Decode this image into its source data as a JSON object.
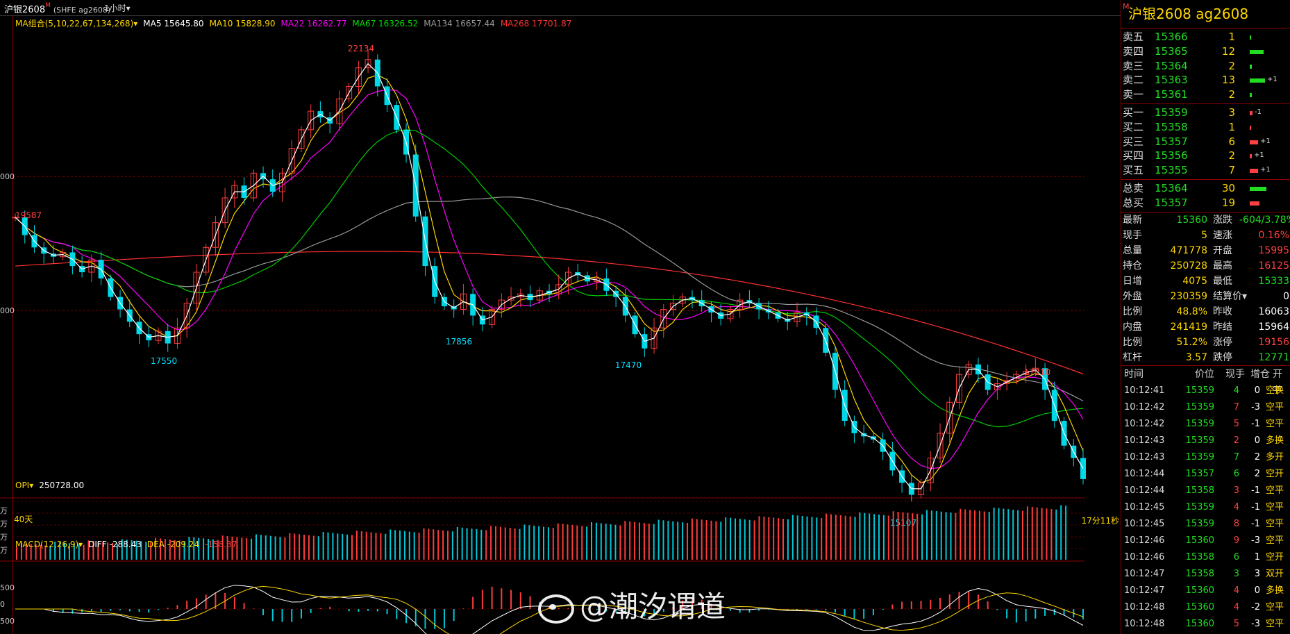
{
  "header": {
    "symbol": "沪银2608",
    "marker": "M",
    "code": "(SHFE ag2608)",
    "period": "1小时▾"
  },
  "main_legend": [
    {
      "label": "MA组合(5,10,22,67,134,268)▾",
      "color": "#ffd700"
    },
    {
      "label": "MA5 15645.80",
      "color": "#ffffff"
    },
    {
      "label": "MA10 15828.90",
      "color": "#ffd700"
    },
    {
      "label": "MA22 16262.77",
      "color": "#ff00ff"
    },
    {
      "label": "MA67 16326.52",
      "color": "#00dd00"
    },
    {
      "label": "MA134 16657.44",
      "color": "#999999"
    },
    {
      "label": "MA268 17701.87",
      "color": "#ff3030"
    }
  ],
  "price_labels": {
    "p22134": "22134",
    "p19587": "19587",
    "p17550": "17550",
    "p17856": "17856",
    "p17470": "17470",
    "p17210": "17210",
    "p15107": "15107",
    "left_days": "40天",
    "countdown": "17分11秒",
    "yaxis_1": "000",
    "yaxis_2": "000"
  },
  "opi_legend": {
    "name": "OPI▾",
    "value": "250728.00"
  },
  "opi_yaxis": [
    "万",
    "万",
    "万",
    "万"
  ],
  "macd_legend": {
    "name": "MACD(12,26,9)▾",
    "diff": "DIFF -288.43",
    "dea": "DEA -209.24",
    "macd": "-158.37"
  },
  "macd_yaxis": [
    "500",
    "0",
    "500"
  ],
  "panel": {
    "title": "沪银2608  ag2608",
    "marker": "M",
    "asks": [
      {
        "label": "卖五",
        "price": "15366",
        "vol": "1",
        "bar": 2,
        "chg": ""
      },
      {
        "label": "卖四",
        "price": "15365",
        "vol": "12",
        "bar": 20,
        "chg": ""
      },
      {
        "label": "卖三",
        "price": "15364",
        "vol": "2",
        "bar": 3,
        "chg": ""
      },
      {
        "label": "卖二",
        "price": "15363",
        "vol": "13",
        "bar": 22,
        "chg": "+1"
      },
      {
        "label": "卖一",
        "price": "15361",
        "vol": "2",
        "bar": 3,
        "chg": ""
      }
    ],
    "bids": [
      {
        "label": "买一",
        "price": "15359",
        "vol": "3",
        "bar": 4,
        "chg": "-1"
      },
      {
        "label": "买二",
        "price": "15358",
        "vol": "1",
        "bar": 2,
        "chg": ""
      },
      {
        "label": "买三",
        "price": "15357",
        "vol": "6",
        "bar": 12,
        "chg": "+1"
      },
      {
        "label": "买四",
        "price": "15356",
        "vol": "2",
        "bar": 3,
        "chg": "+1"
      },
      {
        "label": "买五",
        "price": "15355",
        "vol": "7",
        "bar": 12,
        "chg": "+1"
      }
    ],
    "totals": [
      {
        "label": "总卖",
        "price": "15364",
        "vol": "30",
        "bar": 24,
        "color": "#22dd22"
      },
      {
        "label": "总买",
        "price": "15357",
        "vol": "19",
        "bar": 14,
        "color": "#ff4040"
      }
    ],
    "stats": [
      {
        "l1": "最新",
        "v1": "15360",
        "c1": "#22dd22",
        "l2": "涨跌",
        "v2": "-604/3.78%",
        "c2": "#22dd22"
      },
      {
        "l1": "现手",
        "v1": "5",
        "c1": "#ffd700",
        "l2": "速涨",
        "v2": "0.16%",
        "c2": "#ff4040"
      },
      {
        "l1": "总量",
        "v1": "471778",
        "c1": "#ffd700",
        "l2": "开盘",
        "v2": "15995",
        "c2": "#ff4040"
      },
      {
        "l1": "持仓",
        "v1": "250728",
        "c1": "#ffd700",
        "l2": "最高",
        "v2": "16125",
        "c2": "#ff4040"
      },
      {
        "l1": "日增",
        "v1": "4075",
        "c1": "#ffd700",
        "l2": "最低",
        "v2": "15333",
        "c2": "#22dd22"
      },
      {
        "l1": "外盘",
        "v1": "230359",
        "c1": "#ffd700",
        "l2": "结算价▾",
        "v2": "0",
        "c2": "#ffffff"
      },
      {
        "l1": "比例",
        "v1": "48.8%",
        "c1": "#ffd700",
        "l2": "昨收",
        "v2": "16063",
        "c2": "#ffffff"
      },
      {
        "l1": "内盘",
        "v1": "241419",
        "c1": "#ffd700",
        "l2": "昨结",
        "v2": "15964",
        "c2": "#ffffff"
      },
      {
        "l1": "比例",
        "v1": "51.2%",
        "c1": "#ffd700",
        "l2": "涨停",
        "v2": "19156",
        "c2": "#ff4040"
      },
      {
        "l1": "杠杆",
        "v1": "3.57",
        "c1": "#ffd700",
        "l2": "跌停",
        "v2": "12771",
        "c2": "#22dd22"
      }
    ],
    "tick_headers": [
      "时间",
      "价位",
      "现手",
      "增仓",
      "开平"
    ],
    "ticks": [
      {
        "time": "10:12:41",
        "price": "15359",
        "vol": "4",
        "oi": "0",
        "type": "空换",
        "vc": "#22dd22",
        "oc": "#ffd700"
      },
      {
        "time": "10:12:42",
        "price": "15359",
        "vol": "7",
        "oi": "-3",
        "type": "空平",
        "vc": "#ff4040",
        "oc": "#ffd700"
      },
      {
        "time": "10:12:42",
        "price": "15359",
        "vol": "5",
        "oi": "-1",
        "type": "空平",
        "vc": "#ff4040",
        "oc": "#ffd700"
      },
      {
        "time": "10:12:43",
        "price": "15359",
        "vol": "2",
        "oi": "0",
        "type": "多换",
        "vc": "#ff4040",
        "oc": "#ffd700"
      },
      {
        "time": "10:12:43",
        "price": "15359",
        "vol": "7",
        "oi": "2",
        "type": "多开",
        "vc": "#22dd22",
        "oc": "#ffd700"
      },
      {
        "time": "10:12:44",
        "price": "15357",
        "vol": "6",
        "oi": "2",
        "type": "空开",
        "vc": "#22dd22",
        "oc": "#ffd700"
      },
      {
        "time": "10:12:44",
        "price": "15358",
        "vol": "3",
        "oi": "-1",
        "type": "空平",
        "vc": "#ff4040",
        "oc": "#ffd700"
      },
      {
        "time": "10:12:45",
        "price": "15359",
        "vol": "4",
        "oi": "-1",
        "type": "空平",
        "vc": "#ff4040",
        "oc": "#ffd700"
      },
      {
        "time": "10:12:45",
        "price": "15359",
        "vol": "8",
        "oi": "-1",
        "type": "空平",
        "vc": "#ff4040",
        "oc": "#ffd700"
      },
      {
        "time": "10:12:46",
        "price": "15360",
        "vol": "9",
        "oi": "-3",
        "type": "空平",
        "vc": "#ff4040",
        "oc": "#ffd700"
      },
      {
        "time": "10:12:46",
        "price": "15358",
        "vol": "6",
        "oi": "1",
        "type": "空开",
        "vc": "#22dd22",
        "oc": "#ffd700"
      },
      {
        "time": "10:12:47",
        "price": "15358",
        "vol": "3",
        "oi": "3",
        "type": "双开",
        "vc": "#22dd22",
        "oc": "#ffd700"
      },
      {
        "time": "10:12:47",
        "price": "15360",
        "vol": "4",
        "oi": "0",
        "type": "多换",
        "vc": "#ff4040",
        "oc": "#ffd700"
      },
      {
        "time": "10:12:48",
        "price": "15360",
        "vol": "4",
        "oi": "-2",
        "type": "空平",
        "vc": "#ff4040",
        "oc": "#ffd700"
      },
      {
        "time": "10:12:48",
        "price": "15360",
        "vol": "5",
        "oi": "-3",
        "type": "空平",
        "vc": "#ff4040",
        "oc": "#ffd700"
      }
    ]
  },
  "watermark": "@潮汐谓道",
  "chart_data": {
    "type": "candlestick",
    "instrument": "沪银2608",
    "period": "1小时",
    "price_series_close": [
      19587,
      19300,
      19100,
      19000,
      18950,
      19020,
      18800,
      18700,
      18900,
      18600,
      18300,
      18100,
      17900,
      17700,
      17600,
      17750,
      17550,
      17800,
      18200,
      18700,
      19100,
      19500,
      19900,
      20100,
      19900,
      20300,
      20200,
      20000,
      20300,
      20700,
      21000,
      21300,
      21200,
      21100,
      21500,
      21700,
      22000,
      22134,
      21700,
      21400,
      21000,
      20600,
      19600,
      18800,
      18300,
      18150,
      18100,
      18350,
      18000,
      17856,
      18100,
      18250,
      18300,
      18350,
      18250,
      18400,
      18350,
      18500,
      18700,
      18650,
      18550,
      18600,
      18400,
      18300,
      18000,
      17700,
      17470,
      17800,
      18100,
      18200,
      18300,
      18250,
      18150,
      18050,
      17950,
      18100,
      18250,
      18200,
      18100,
      18050,
      17950,
      17900,
      18050,
      18000,
      17800,
      17400,
      16800,
      16300,
      16100,
      16050,
      16000,
      15800,
      15500,
      15300,
      15107,
      15300,
      15700,
      16100,
      16600,
      17050,
      17210,
      17050,
      16800,
      16900,
      16950,
      17050,
      17100,
      17150,
      16800,
      16300,
      15900,
      15700,
      15360
    ]
  }
}
